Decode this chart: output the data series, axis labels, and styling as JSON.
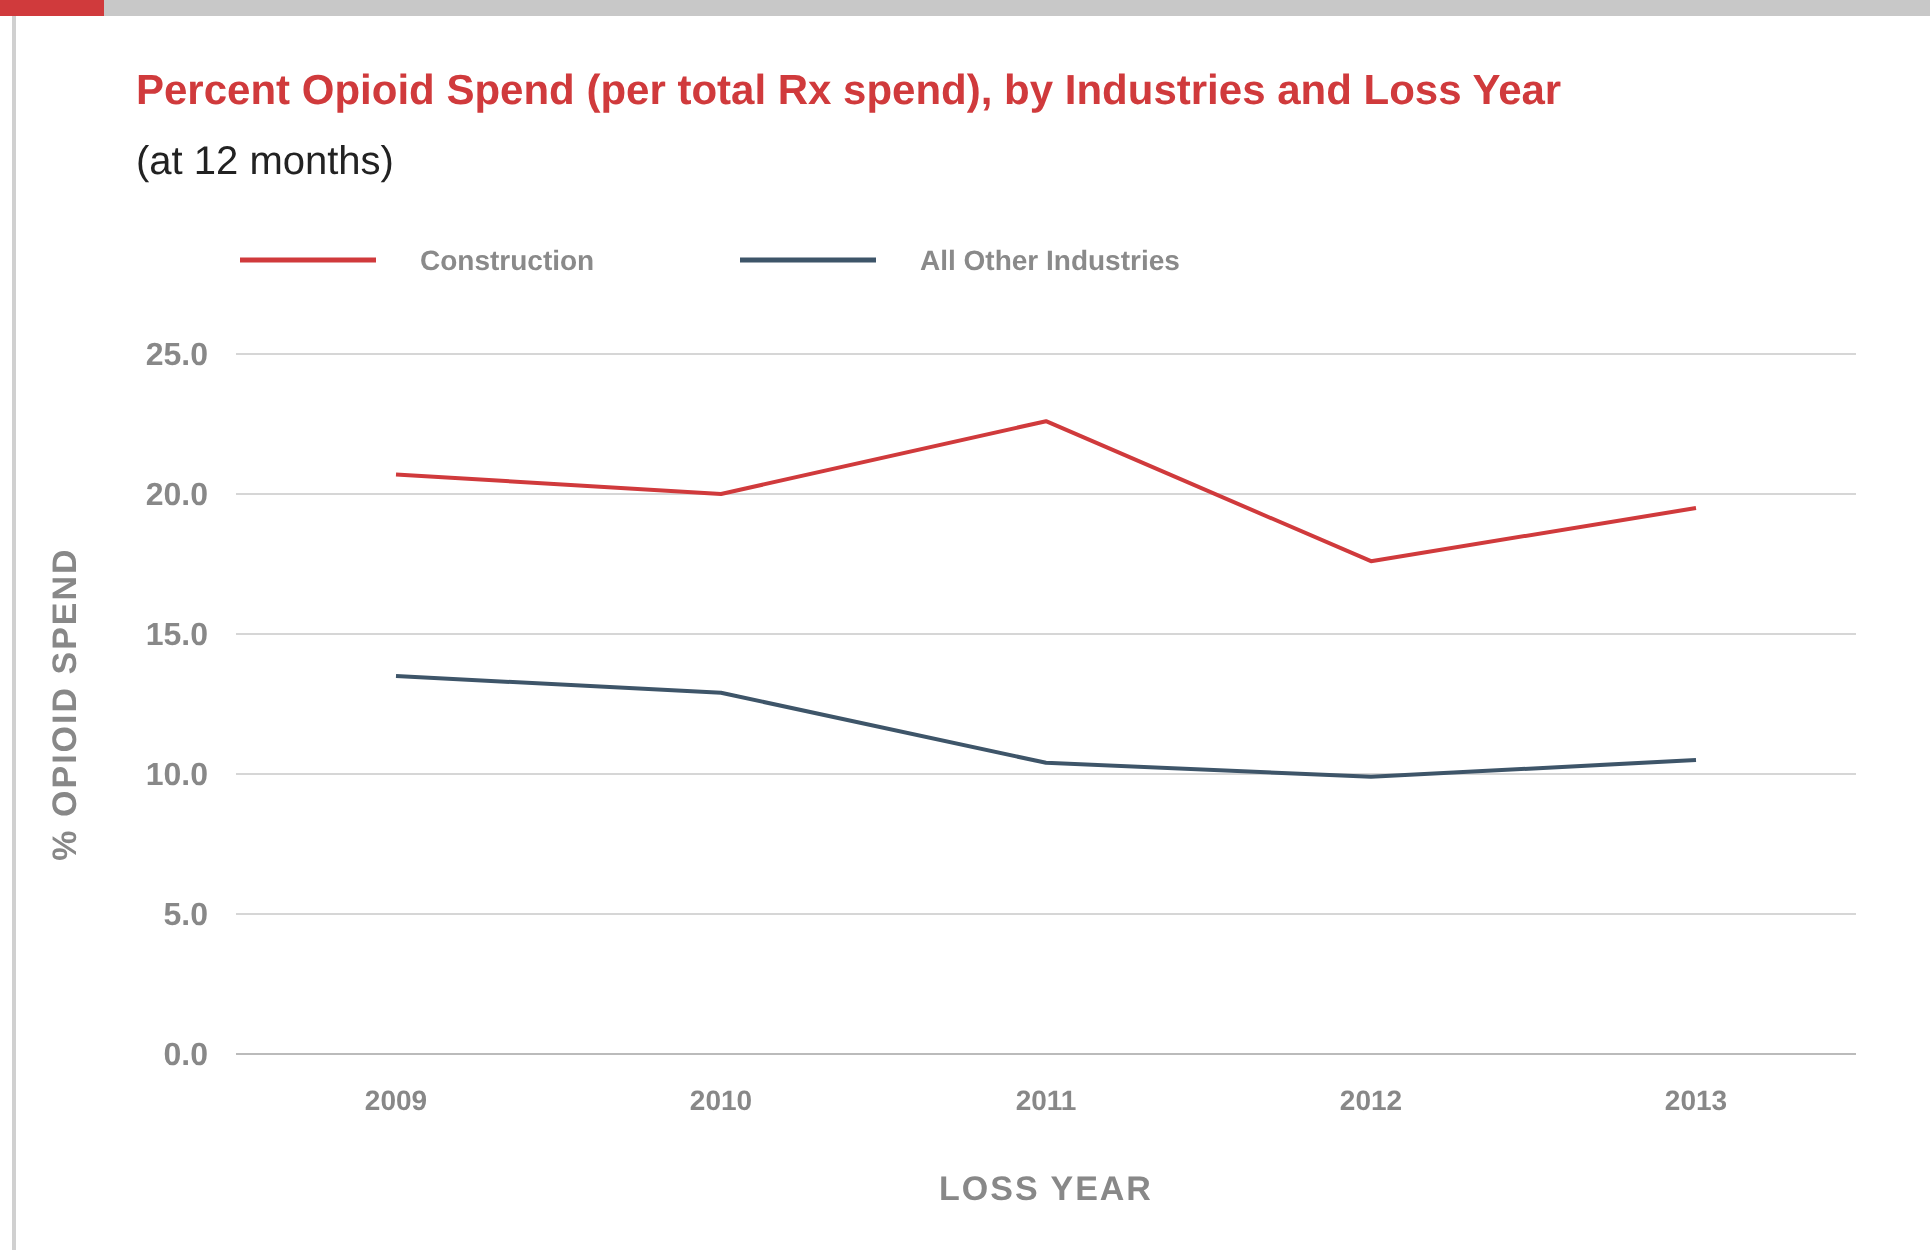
{
  "chart_data": {
    "type": "line",
    "title": "Percent Opioid Spend (per total Rx spend), by Industries and Loss Year",
    "subtitle": "(at 12 months)",
    "xlabel": "LOSS YEAR",
    "ylabel": "% OPIOID SPEND",
    "categories": [
      "2009",
      "2010",
      "2011",
      "2012",
      "2013"
    ],
    "series": [
      {
        "name": "Construction",
        "color": "#d03a3c",
        "values": [
          20.7,
          20.0,
          22.6,
          17.6,
          19.5
        ]
      },
      {
        "name": "All Other Industries",
        "color": "#3e5569",
        "values": [
          13.5,
          12.9,
          10.4,
          9.9,
          10.5
        ]
      }
    ],
    "ylim": [
      0,
      25
    ],
    "yticks": [
      {
        "value": 0,
        "label": "0.0"
      },
      {
        "value": 5,
        "label": "5.0"
      },
      {
        "value": 10,
        "label": "10.0"
      },
      {
        "value": 15,
        "label": "15.0"
      },
      {
        "value": 20,
        "label": "20.0"
      },
      {
        "value": 25,
        "label": "25.0"
      }
    ],
    "grid": "y",
    "legend": "top left",
    "marker": "none",
    "line_style": "solid"
  }
}
